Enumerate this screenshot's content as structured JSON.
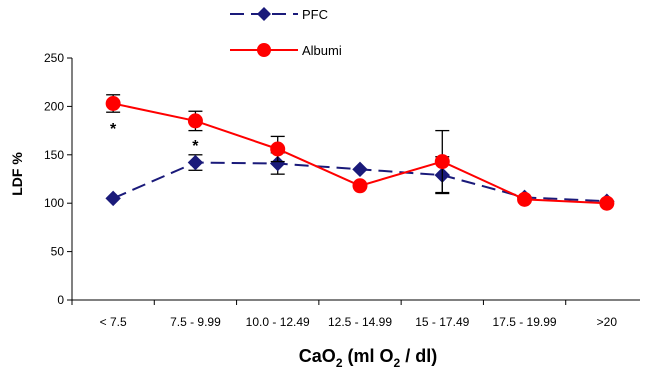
{
  "chart_data": {
    "type": "line",
    "categories": [
      "< 7.5",
      "7.5 - 9.99",
      "10.0 - 12.49",
      "12.5 - 14.99",
      "15 - 17.49",
      "17.5 - 19.99",
      ">20"
    ],
    "ylim": [
      0,
      250
    ],
    "yticks": [
      0,
      50,
      100,
      150,
      200,
      250
    ],
    "ylabel": "LDF %",
    "xlabel": {
      "base": "CaO",
      "sub1": "2",
      "mid": " (ml O",
      "sub2": "2",
      "tail": " / dl)"
    },
    "grid": false,
    "legend_position": "top-center",
    "series": [
      {
        "name": "PFC",
        "color": "#1a1a7a",
        "line_style": "dashed",
        "marker": "diamond",
        "values": [
          105,
          142,
          141,
          135,
          129,
          106,
          102
        ],
        "error": [
          null,
          8,
          11,
          null,
          19,
          null,
          null
        ]
      },
      {
        "name": "Albumi",
        "color": "#ff0000",
        "line_style": "solid",
        "marker": "circle",
        "values": [
          203,
          185,
          156,
          118,
          143,
          104,
          100
        ],
        "error": [
          9,
          10,
          13,
          null,
          32,
          null,
          null
        ]
      }
    ],
    "annotations": [
      {
        "text": "*",
        "category_index": 0,
        "y": 180
      },
      {
        "text": "*",
        "category_index": 1,
        "y": 162
      }
    ]
  }
}
